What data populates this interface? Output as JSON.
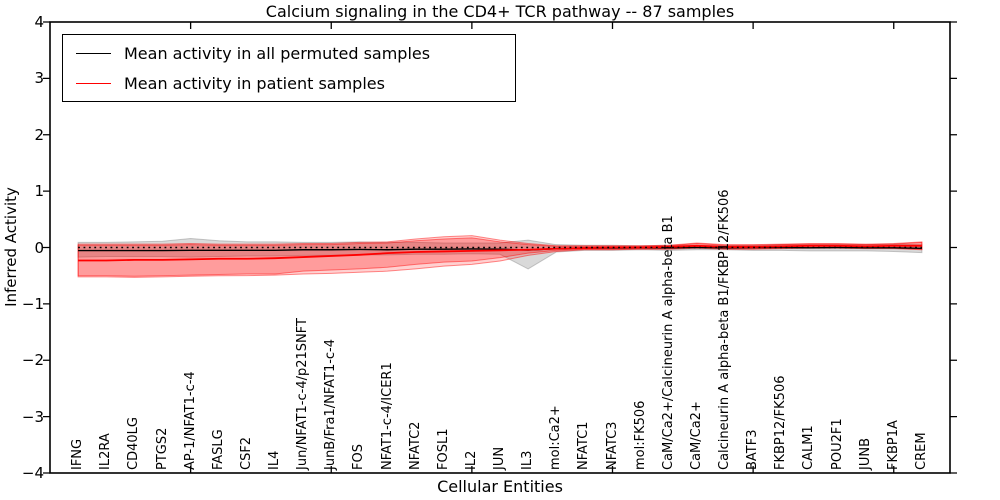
{
  "chart_data": {
    "type": "line",
    "title": "Calcium signaling in the CD4+ TCR pathway -- 87 samples",
    "xlabel": "Cellular Entities",
    "ylabel": "Inferred Activity",
    "ylim": [
      -4,
      4
    ],
    "grid": false,
    "legend_position": "upper-left",
    "yticks": [
      {
        "value": 4,
        "label": "4"
      },
      {
        "value": 3,
        "label": "3"
      },
      {
        "value": 2,
        "label": "2"
      },
      {
        "value": 1,
        "label": "1"
      },
      {
        "value": 0,
        "label": "0"
      },
      {
        "value": -1,
        "label": "−1"
      },
      {
        "value": -2,
        "label": "−2"
      },
      {
        "value": -3,
        "label": "−3"
      },
      {
        "value": -4,
        "label": "−4"
      }
    ],
    "x_major_tick_indices": [
      4,
      9,
      14,
      19,
      24,
      29
    ],
    "categories": [
      "IFNG",
      "IL2RA",
      "CD40LG",
      "PTGS2",
      "AP-1/NFAT1-c-4",
      "FASLG",
      "CSF2",
      "IL4",
      "Jun/NFAT1-c-4/p21SNFT",
      "JunB/Fra1/NFAT1-c-4",
      "FOS",
      "NFAT1-c-4/ICER1",
      "NFATC2",
      "FOSL1",
      "IL2",
      "JUN",
      "IL3",
      "mol:Ca2+",
      "NFATC1",
      "NFATC3",
      "mol:FK506",
      "CaM/Ca2+/Calcineurin A alpha-beta B1",
      "CaM/Ca2+",
      "Calcineurin A alpha-beta B1/FKBP12/FK506",
      "BATF3",
      "FKBP12/FK506",
      "CALM1",
      "POU2F1",
      "JUNB",
      "FKBP1A",
      "CREM"
    ],
    "series": [
      {
        "name": "Mean activity in all permuted samples",
        "color": "#000000",
        "values": [
          -0.055,
          -0.055,
          -0.055,
          -0.055,
          -0.05,
          -0.05,
          -0.05,
          -0.05,
          -0.04,
          -0.04,
          -0.035,
          -0.04,
          -0.03,
          -0.03,
          -0.025,
          -0.03,
          -0.045,
          -0.02,
          -0.01,
          -0.01,
          -0.005,
          -0.005,
          0,
          -0.005,
          0,
          0,
          -0.005,
          0,
          -0.005,
          -0.005,
          -0.015
        ]
      },
      {
        "name": "Mean activity in patient samples",
        "color": "#ff0000",
        "values": [
          -0.23,
          -0.23,
          -0.22,
          -0.22,
          -0.21,
          -0.2,
          -0.2,
          -0.19,
          -0.17,
          -0.15,
          -0.13,
          -0.1,
          -0.08,
          -0.07,
          -0.06,
          -0.05,
          -0.04,
          -0.02,
          -0.01,
          0,
          0,
          0.01,
          0.03,
          0.01,
          0.01,
          0.02,
          0.03,
          0.03,
          0.02,
          0.03,
          0.03
        ]
      }
    ],
    "bands": [
      {
        "name": "permuted-std",
        "color": "#888888",
        "opacity": 0.32,
        "lo": [
          -0.17,
          -0.16,
          -0.16,
          -0.16,
          -0.17,
          -0.16,
          -0.15,
          -0.15,
          -0.14,
          -0.14,
          -0.13,
          -0.13,
          -0.12,
          -0.12,
          -0.11,
          -0.12,
          -0.38,
          -0.08,
          -0.05,
          -0.05,
          -0.04,
          -0.05,
          -0.04,
          -0.04,
          -0.05,
          -0.05,
          -0.06,
          -0.06,
          -0.06,
          -0.07,
          -0.09
        ],
        "hi": [
          0.09,
          0.09,
          0.1,
          0.11,
          0.16,
          0.12,
          0.1,
          0.1,
          0.09,
          0.09,
          0.1,
          0.09,
          0.09,
          0.08,
          0.08,
          0.08,
          0.13,
          0.05,
          0.04,
          0.04,
          0.03,
          0.04,
          0.04,
          0.03,
          0.04,
          0.05,
          0.05,
          0.05,
          0.05,
          0.06,
          0.05
        ]
      },
      {
        "name": "patient-std-outer",
        "color": "#ff0000",
        "opacity": 0.18,
        "lo": [
          -0.52,
          -0.52,
          -0.53,
          -0.52,
          -0.51,
          -0.5,
          -0.5,
          -0.49,
          -0.47,
          -0.46,
          -0.44,
          -0.42,
          -0.38,
          -0.33,
          -0.3,
          -0.24,
          -0.14,
          -0.07,
          -0.04,
          -0.04,
          -0.03,
          -0.03,
          -0.01,
          -0.03,
          -0.03,
          -0.02,
          -0.01,
          -0.01,
          -0.02,
          -0.02,
          -0.04
        ],
        "hi": [
          0.06,
          0.06,
          0.06,
          0.06,
          0.07,
          0.06,
          0.06,
          0.06,
          0.07,
          0.07,
          0.09,
          0.1,
          0.15,
          0.19,
          0.21,
          0.13,
          0.07,
          0.03,
          0.03,
          0.03,
          0.03,
          0.04,
          0.08,
          0.05,
          0.05,
          0.06,
          0.07,
          0.07,
          0.06,
          0.07,
          0.1
        ]
      },
      {
        "name": "patient-std-inner",
        "color": "#ff0000",
        "opacity": 0.25,
        "lo": [
          -0.5,
          -0.5,
          -0.51,
          -0.5,
          -0.49,
          -0.48,
          -0.47,
          -0.47,
          -0.42,
          -0.4,
          -0.38,
          -0.35,
          -0.3,
          -0.26,
          -0.24,
          -0.18,
          -0.1,
          -0.05,
          -0.03,
          -0.03,
          -0.02,
          -0.02,
          0,
          -0.02,
          -0.02,
          -0.01,
          0,
          0,
          -0.01,
          -0.01,
          -0.03
        ],
        "hi": [
          0.04,
          0.04,
          0.04,
          0.04,
          0.05,
          0.04,
          0.04,
          0.04,
          0.05,
          0.05,
          0.07,
          0.08,
          0.12,
          0.15,
          0.17,
          0.1,
          0.05,
          0.02,
          0.02,
          0.02,
          0.02,
          0.03,
          0.07,
          0.04,
          0.04,
          0.05,
          0.06,
          0.06,
          0.05,
          0.06,
          0.09
        ]
      }
    ],
    "zero_line": {
      "style": "dotted",
      "color": "#000000",
      "y": 0
    }
  }
}
